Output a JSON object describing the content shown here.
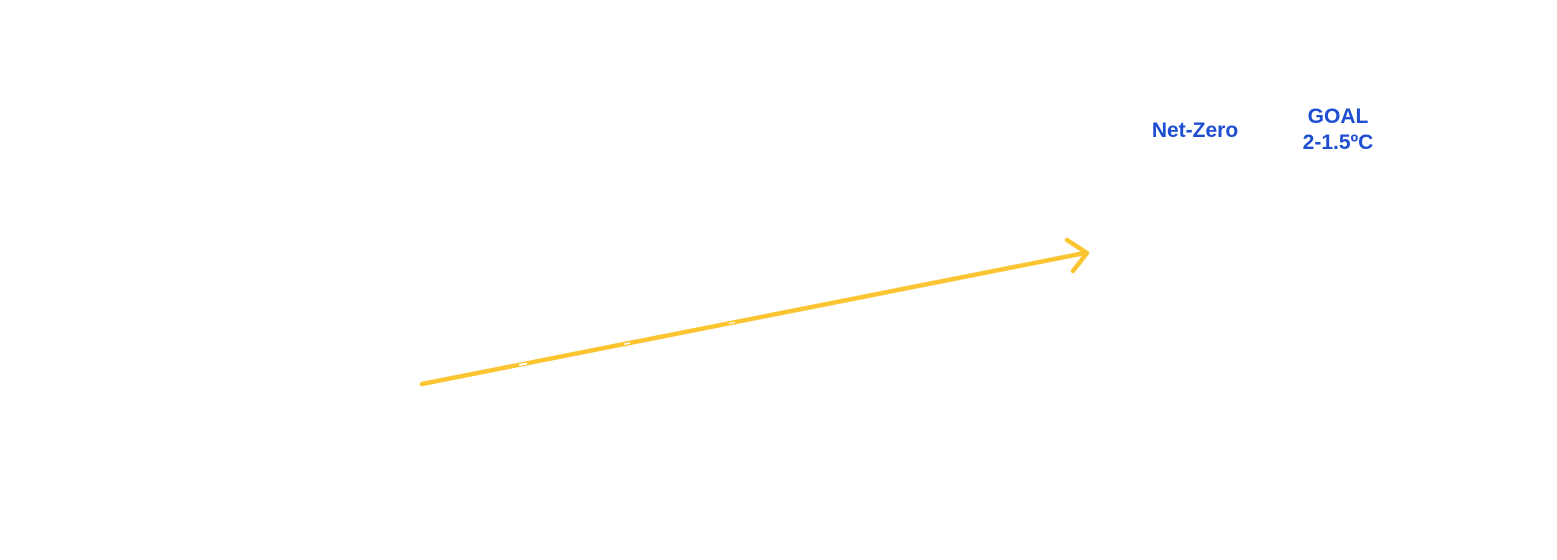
{
  "labels": {
    "net_zero": "Net-Zero",
    "goal_title": "GOAL",
    "goal_value": "2-1.5ºC"
  },
  "colors": {
    "text": "#1f4fd1",
    "arrow": "#fbc531",
    "background": "#ffffff"
  },
  "icons": {
    "arrow": "trend-up-arrow-icon"
  }
}
